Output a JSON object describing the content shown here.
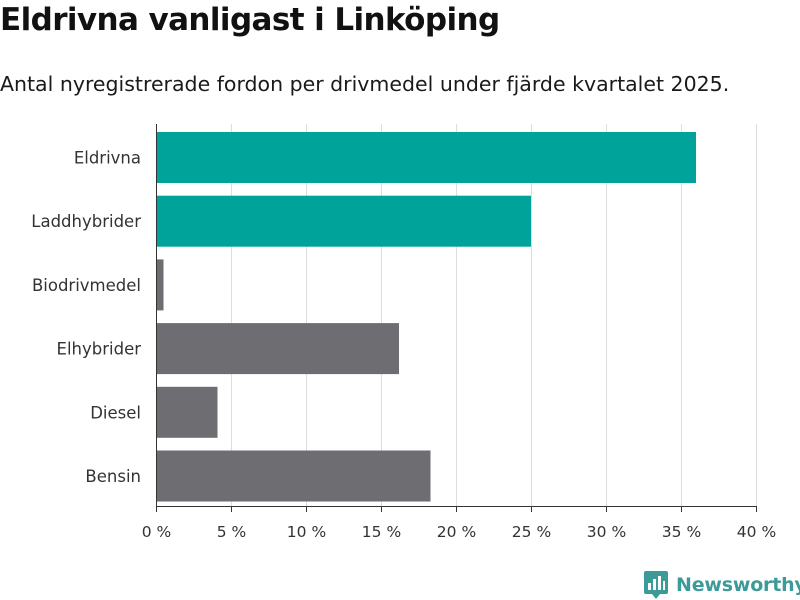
{
  "header": {
    "title": "Eldrivna vanligast i Linköping",
    "subtitle": "Antal nyregistrerade fordon per drivmedel under fjärde kvartalet 2025."
  },
  "brand": {
    "name": "Newsworthy",
    "logo_icon": "bar-chart-bubble-icon",
    "color": "#3c9a98"
  },
  "colors": {
    "highlight": "#00a399",
    "neutral": "#6e6d72",
    "grid": "#dddddd",
    "axis": "#333333"
  },
  "chart_data": {
    "type": "bar",
    "orientation": "horizontal",
    "categories": [
      "Eldrivna",
      "Laddhybrider",
      "Biodrivmedel",
      "Elhybrider",
      "Diesel",
      "Bensin"
    ],
    "values": [
      36.0,
      25.0,
      0.5,
      16.2,
      4.1,
      18.3
    ],
    "highlight": [
      true,
      true,
      false,
      false,
      false,
      false
    ],
    "xlim": [
      0,
      40
    ],
    "xticks": [
      0,
      5,
      10,
      15,
      20,
      25,
      30,
      35,
      40
    ],
    "xtick_labels": [
      "0 %",
      "5 %",
      "10 %",
      "15 %",
      "20 %",
      "25 %",
      "30 %",
      "35 %",
      "40 %"
    ],
    "xlabel": "",
    "ylabel": "",
    "grid": true,
    "legend": "none"
  }
}
